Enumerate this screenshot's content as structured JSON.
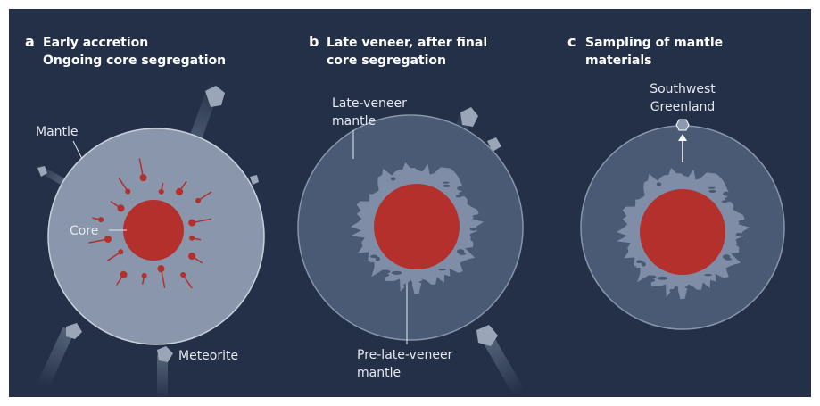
{
  "panels": [
    {
      "letter": "a",
      "title": [
        "Early accretion",
        "Ongoing core segregation"
      ],
      "labels": {
        "mantle": "Mantle",
        "core": "Core",
        "meteorite": "Meteorite"
      }
    },
    {
      "letter": "b",
      "title": [
        "Late veneer, after final",
        "core segregation"
      ],
      "labels": {
        "late_veneer": [
          "Late-veneer",
          "mantle"
        ],
        "pre_late_veneer": [
          "Pre-late-veneer",
          "mantle"
        ]
      }
    },
    {
      "letter": "c",
      "title": [
        "Sampling of mantle",
        "materials"
      ],
      "labels": {
        "site": [
          "Southwest",
          "Greenland"
        ]
      }
    }
  ]
}
